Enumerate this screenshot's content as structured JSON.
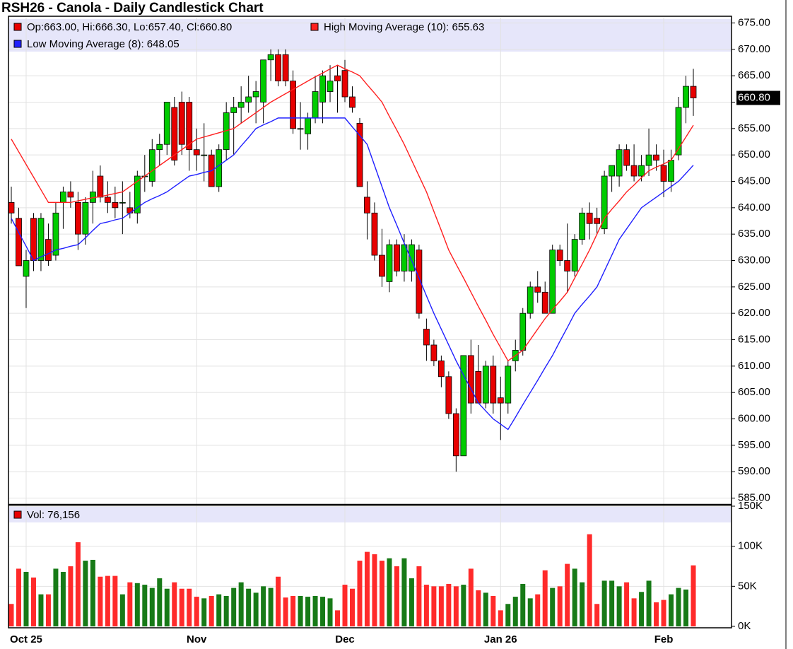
{
  "chart_data": [
    {
      "type": "candlestick",
      "title": "RSH26 - Canola - Daily Candlestick Chart",
      "ohlc_legend": "Op:663.00, Hi:666.30, Lo:657.40, Cl:660.80",
      "last_price": {
        "value": 660.8,
        "label": "660.80"
      },
      "up_color": "#00cc00",
      "down_color": "#e80000",
      "categories": [
        null,
        null,
        "Oct 25",
        null,
        null,
        null,
        null,
        null,
        null,
        null,
        null,
        null,
        null,
        null,
        null,
        null,
        null,
        null,
        null,
        null,
        null,
        null,
        null,
        null,
        null,
        "Nov",
        null,
        null,
        null,
        null,
        null,
        null,
        null,
        null,
        null,
        null,
        null,
        null,
        null,
        null,
        null,
        null,
        null,
        null,
        null,
        "Dec",
        null,
        null,
        null,
        null,
        null,
        null,
        null,
        null,
        null,
        null,
        null,
        null,
        null,
        null,
        null,
        null,
        null,
        null,
        null,
        null,
        "Jan 26",
        null,
        null,
        null,
        null,
        null,
        null,
        null,
        null,
        null,
        null,
        null,
        null,
        null,
        null,
        null,
        null,
        null,
        null,
        null,
        null,
        null,
        "Feb",
        null,
        null,
        null,
        null
      ],
      "open": [
        641,
        638,
        627,
        638,
        630,
        634,
        631,
        641,
        643,
        641,
        635,
        641,
        646,
        642,
        641,
        641,
        640,
        639,
        646,
        645,
        651,
        652,
        659,
        660,
        660,
        651,
        650,
        650,
        644,
        651,
        658,
        659,
        660,
        661,
        660,
        668,
        669,
        669,
        664,
        655,
        654,
        657,
        660,
        662,
        665,
        666,
        661,
        656,
        642,
        639,
        631,
        626,
        633,
        628,
        628,
        632,
        617,
        614,
        611,
        608,
        601,
        593,
        612,
        609,
        603,
        610,
        604,
        603,
        611,
        613,
        620,
        625,
        624,
        620,
        632,
        630,
        628,
        634,
        639,
        638,
        636,
        646,
        646,
        651,
        648,
        646,
        648,
        650,
        648,
        645,
        650,
        659,
        663
      ],
      "high": [
        644,
        640,
        632,
        639,
        639,
        637,
        641,
        644,
        645,
        643,
        642,
        647,
        648,
        645,
        644,
        645,
        643,
        647,
        650,
        653,
        654,
        660,
        661,
        662,
        661,
        655,
        656,
        651,
        652,
        660,
        661,
        663,
        665,
        664,
        668,
        670,
        670,
        670,
        666,
        660,
        658,
        665,
        666,
        667,
        667,
        668,
        663,
        657,
        645,
        641,
        636,
        634,
        634,
        635,
        634,
        633,
        619,
        615,
        612,
        609,
        602,
        612,
        615,
        614,
        611,
        612,
        608,
        611,
        615,
        621,
        626,
        628,
        626,
        633,
        633,
        637,
        635,
        640,
        641,
        640,
        647,
        648,
        652,
        652,
        652,
        650,
        655,
        652,
        651,
        651,
        661,
        665,
        666.3
      ],
      "low": [
        637,
        629,
        621,
        628,
        628,
        629,
        630,
        636,
        640,
        632,
        633,
        637,
        641,
        639,
        638,
        635,
        638,
        637,
        643,
        644,
        648,
        650,
        648,
        650,
        647,
        647,
        645,
        644,
        643,
        649,
        650,
        656,
        658,
        656,
        656,
        664,
        663,
        663,
        654,
        651,
        651,
        656,
        656,
        660,
        658,
        660,
        658,
        644,
        634,
        630,
        625,
        624,
        627,
        626,
        626,
        619,
        611,
        610,
        606,
        600,
        590,
        593,
        601,
        603,
        602,
        601,
        596,
        601,
        609,
        612,
        619,
        622,
        620,
        620,
        629,
        624,
        627,
        633,
        634,
        635,
        635,
        643,
        644,
        647,
        645,
        645,
        646,
        647,
        642,
        643,
        649,
        656,
        657.4
      ],
      "close": [
        639,
        629,
        630,
        630,
        638,
        630,
        639,
        643,
        642,
        635,
        641,
        643,
        642,
        641,
        640,
        641,
        639,
        646,
        646,
        651,
        652,
        660,
        649,
        652,
        651,
        650,
        650,
        644,
        651,
        658,
        659,
        660,
        661,
        662,
        668,
        669,
        664,
        664,
        655,
        655,
        657,
        662,
        665,
        664,
        664,
        661,
        659,
        644,
        639,
        631,
        627,
        633,
        628,
        633,
        633,
        620,
        614,
        611,
        608,
        601,
        593,
        612,
        603,
        603,
        610,
        603,
        603,
        610,
        613,
        620,
        625,
        624,
        620,
        632,
        630,
        628,
        634,
        639,
        637,
        637,
        646,
        648,
        651,
        648,
        646,
        648,
        650,
        649,
        645,
        649,
        659,
        663,
        660.8
      ],
      "series": [
        {
          "name": "High Moving Average (10): 655.63",
          "color": "#ff2020",
          "values": [
            653,
            650.6,
            648.2,
            645.8,
            643.4,
            641,
            641,
            641,
            641,
            641.3,
            641.6,
            641.9,
            642.1,
            642.4,
            642.7,
            643,
            644,
            645,
            646,
            647,
            648,
            649,
            650,
            651,
            652,
            653,
            653.4,
            653.8,
            654.2,
            654.6,
            655,
            656,
            657,
            658,
            659,
            660,
            660.8,
            661.6,
            662.4,
            663.2,
            664,
            664.8,
            665.5,
            666.3,
            667,
            666.3,
            665.7,
            665,
            663.3,
            661.7,
            660,
            657.3,
            654.7,
            652,
            649,
            646,
            643,
            639.3,
            635.7,
            632,
            629.3,
            626.7,
            624,
            621.3,
            618.7,
            616,
            613.5,
            611,
            612,
            613,
            615,
            617,
            619,
            620.7,
            622.3,
            624,
            626.7,
            629.3,
            632,
            635,
            638,
            639.7,
            641.3,
            643,
            644.3,
            645.7,
            647,
            647.7,
            648.3,
            649,
            651.2,
            653.4,
            655.63
          ]
        },
        {
          "name": "Low Moving Average (8): 648.05",
          "color": "#2020ff",
          "values": [
            638,
            635.3,
            632.7,
            630,
            630.7,
            631.3,
            632,
            632.3,
            632.7,
            633,
            634.3,
            635.7,
            637,
            637.3,
            637.7,
            638,
            639,
            640,
            641,
            641.7,
            642.3,
            643,
            644,
            645,
            646,
            646.3,
            646.7,
            647,
            648,
            649,
            650,
            651.7,
            653.3,
            655,
            655.7,
            656.3,
            657,
            657,
            657,
            657,
            657,
            657,
            657,
            657,
            657,
            657,
            655.3,
            653.7,
            652,
            648,
            644,
            640,
            636.7,
            633.3,
            630,
            626.7,
            623.3,
            620,
            617,
            614,
            611,
            608.3,
            605.7,
            603,
            601.5,
            600,
            599,
            598,
            600.3,
            602.7,
            605,
            607.3,
            609.7,
            612,
            614.7,
            617.3,
            620,
            621.7,
            623.3,
            625,
            628,
            631,
            634,
            636,
            638,
            640,
            641,
            642,
            643,
            644,
            645,
            646.5,
            648.05
          ]
        }
      ],
      "ylim": [
        584,
        676
      ],
      "yticks": [
        {
          "value": 675,
          "label": "675.00"
        },
        {
          "value": 670,
          "label": "670.00"
        },
        {
          "value": 665,
          "label": "665.00"
        },
        {
          "value": 660,
          "label": "660.00"
        },
        {
          "value": 655,
          "label": "655.00"
        },
        {
          "value": 650,
          "label": "650.00"
        },
        {
          "value": 645,
          "label": "645.00"
        },
        {
          "value": 640,
          "label": "640.00"
        },
        {
          "value": 635,
          "label": "635.00"
        },
        {
          "value": 630,
          "label": "630.00"
        },
        {
          "value": 625,
          "label": "625.00"
        },
        {
          "value": 620,
          "label": "620.00"
        },
        {
          "value": 615,
          "label": "615.00"
        },
        {
          "value": 610,
          "label": "610.00"
        },
        {
          "value": 605,
          "label": "605.00"
        },
        {
          "value": 600,
          "label": "600.00"
        },
        {
          "value": 595,
          "label": "595.00"
        },
        {
          "value": 590,
          "label": "590.00"
        },
        {
          "value": 585,
          "label": "585.00"
        }
      ],
      "grid": true
    },
    {
      "type": "bar",
      "legend": "Vol: 76,156",
      "legend_color": "#e80000",
      "up_color": "#177a17",
      "down_color": "#ff2a2a",
      "values": [
        28000,
        72000,
        68000,
        61000,
        40000,
        40000,
        72000,
        68000,
        75000,
        105000,
        82000,
        83000,
        62000,
        63000,
        63000,
        40000,
        55000,
        54000,
        52000,
        48000,
        60000,
        47000,
        55000,
        47000,
        47000,
        37000,
        35000,
        38000,
        40000,
        38000,
        48000,
        55000,
        47000,
        42000,
        50000,
        48000,
        62000,
        36000,
        38000,
        38000,
        37000,
        38000,
        37000,
        35000,
        20000,
        52000,
        47000,
        82000,
        93000,
        90000,
        82000,
        85000,
        75000,
        85000,
        60000,
        75000,
        52000,
        50000,
        50000,
        53000,
        50000,
        52000,
        72000,
        45000,
        42000,
        38000,
        20000,
        28000,
        37000,
        53000,
        35000,
        40000,
        70000,
        48000,
        50000,
        78000,
        72000,
        55000,
        115000,
        28000,
        57000,
        57000,
        50000,
        55000,
        35000,
        43000,
        57000,
        30000,
        33000,
        40000,
        48000,
        46000,
        76156
      ],
      "ylim": [
        0,
        150000
      ],
      "yticks": [
        {
          "value": 150000,
          "label": "150K"
        },
        {
          "value": 100000,
          "label": "100K"
        },
        {
          "value": 50000,
          "label": "50K"
        },
        {
          "value": 0,
          "label": "0K"
        }
      ],
      "grid": true
    }
  ]
}
